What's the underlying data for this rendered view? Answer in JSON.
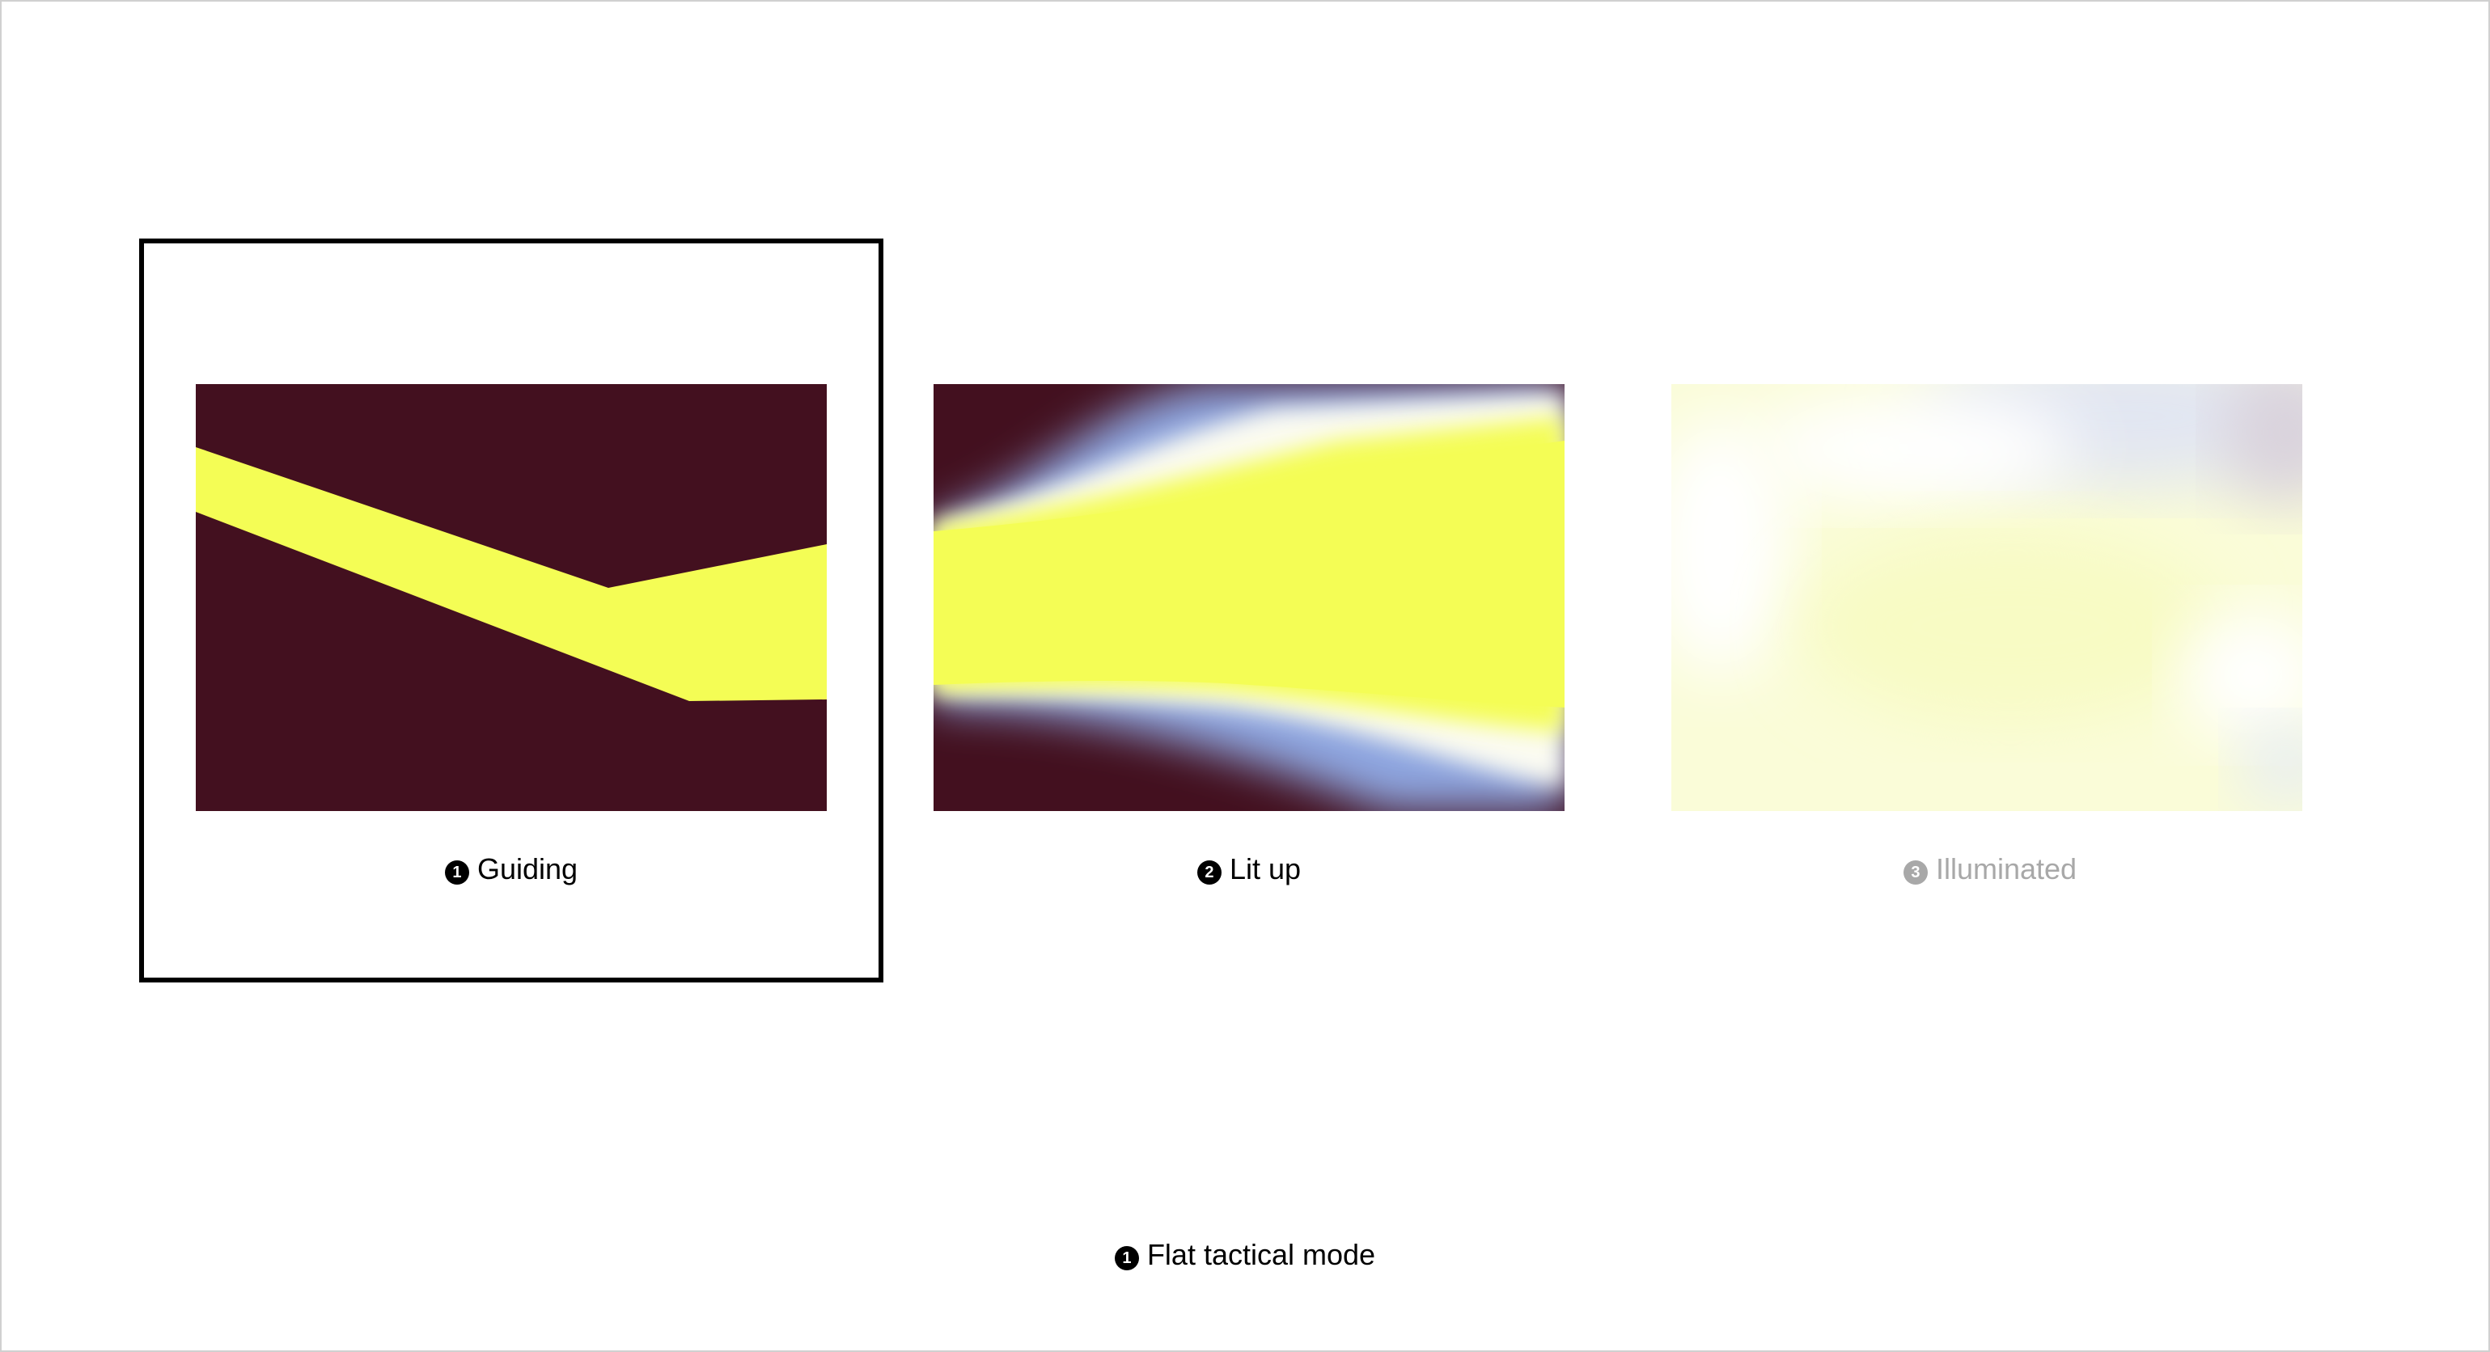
{
  "colors": {
    "dark": "#43101f",
    "yellow": "#f4fd55",
    "blue": "#7e9ee6",
    "disabled_text": "#a8a8a8",
    "selected_border": "#000000"
  },
  "modes": [
    {
      "number": "1",
      "label": "Guiding",
      "selected": true,
      "enabled": true
    },
    {
      "number": "2",
      "label": "Lit up",
      "selected": false,
      "enabled": true
    },
    {
      "number": "3",
      "label": "Illuminated",
      "selected": false,
      "enabled": false
    }
  ],
  "current_mode": {
    "number": "1",
    "label": "Flat tactical mode"
  }
}
